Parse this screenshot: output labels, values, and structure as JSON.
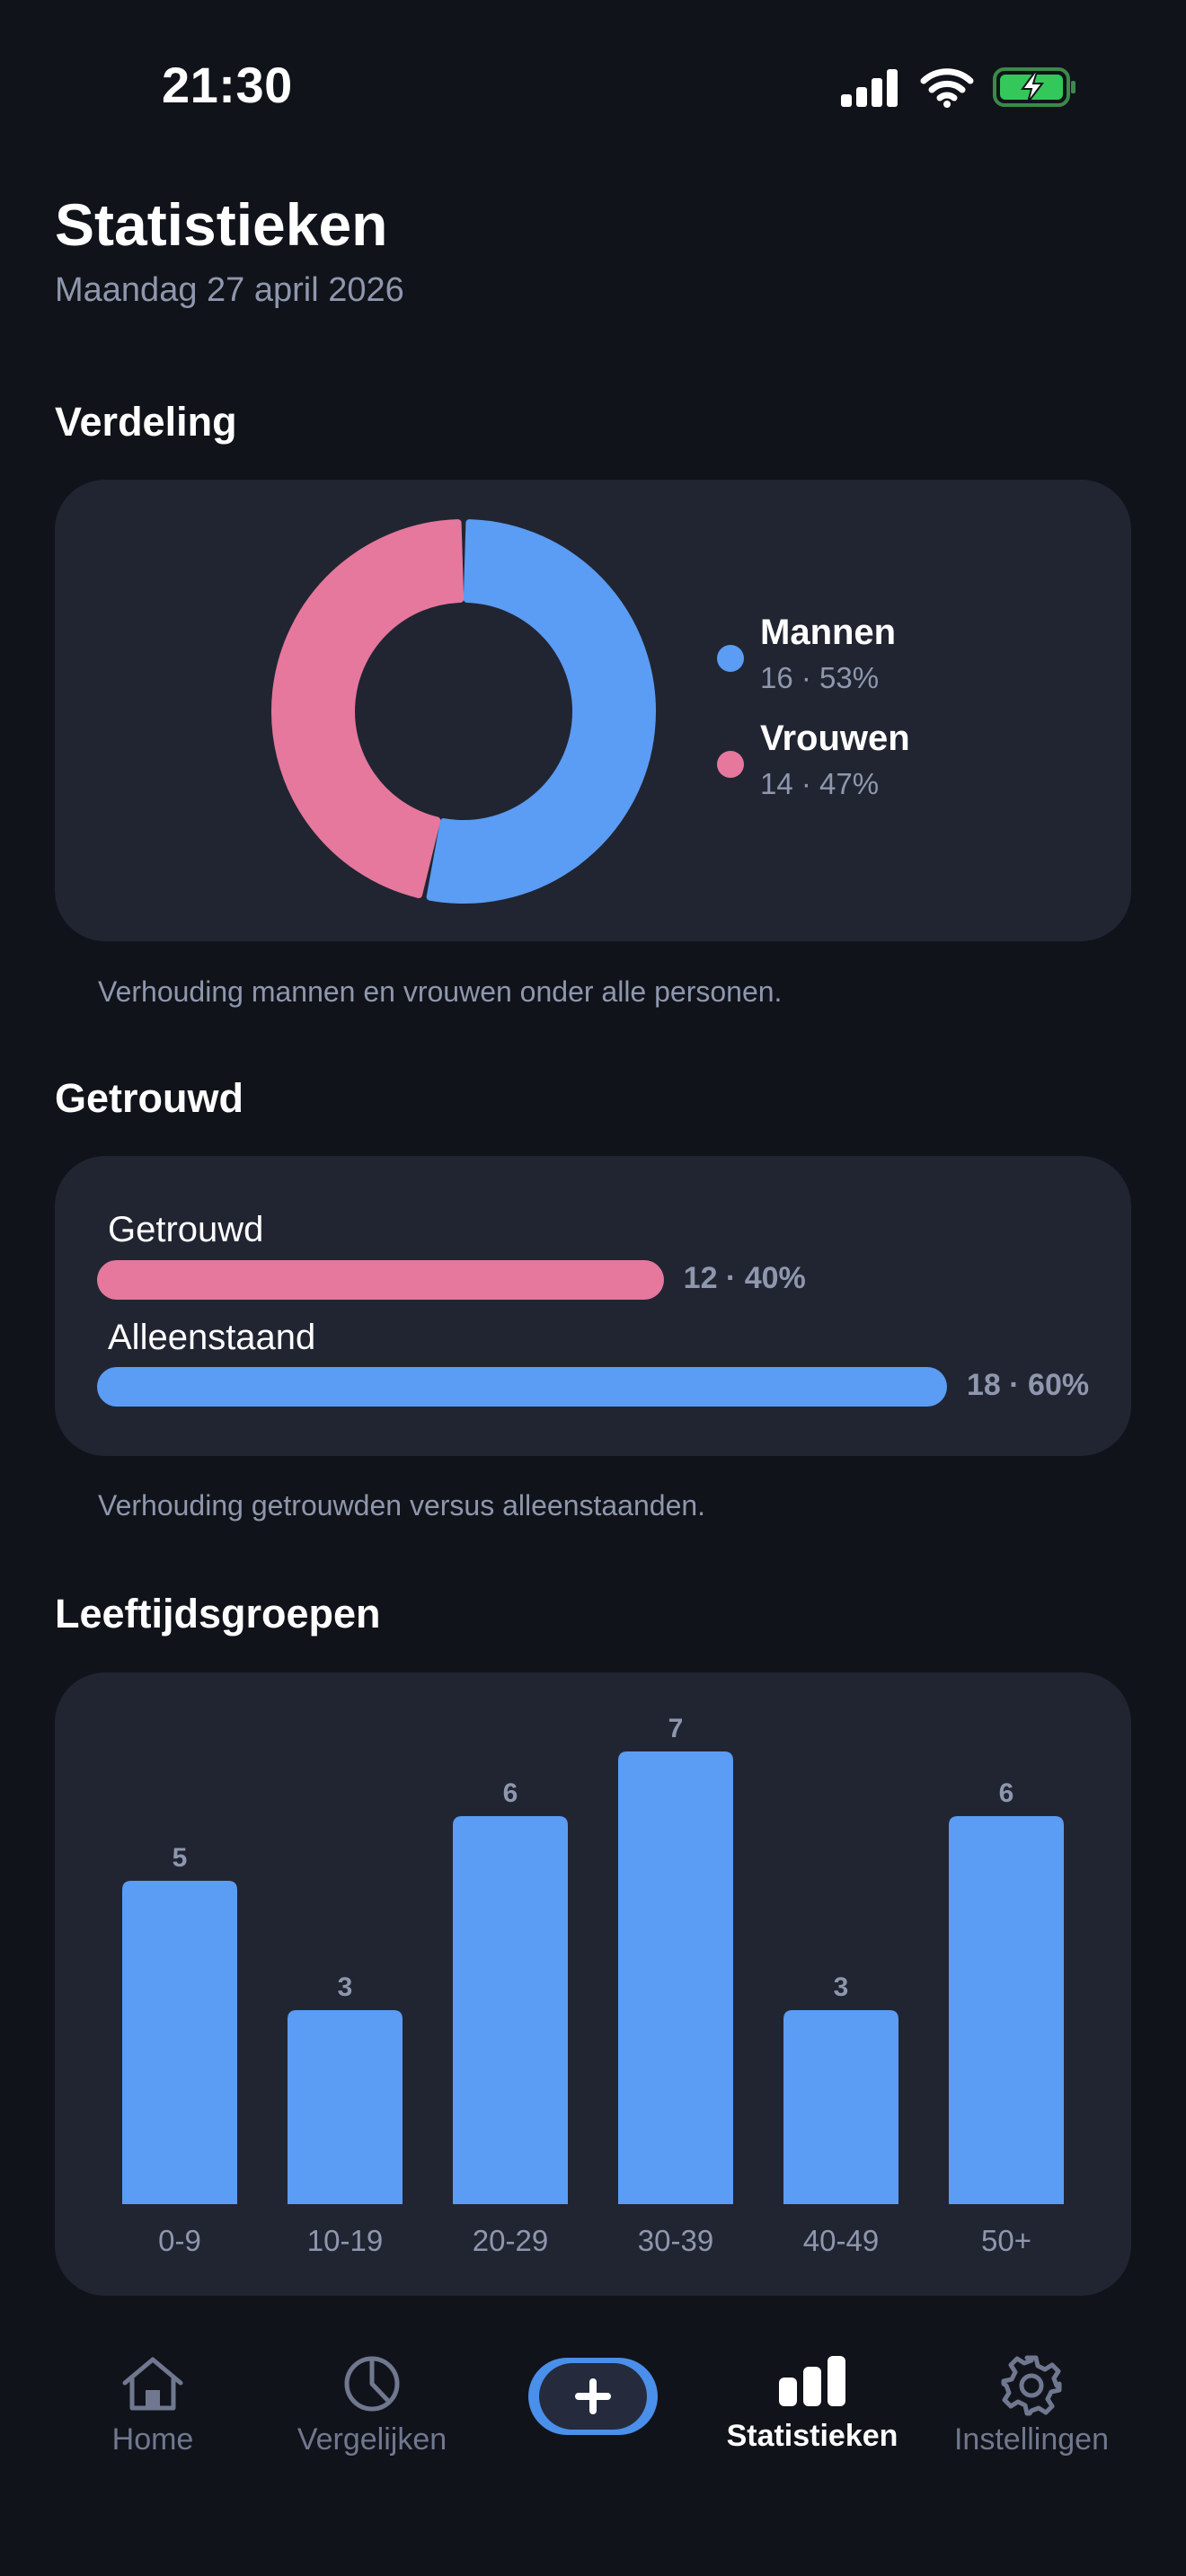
{
  "status_bar": {
    "time": "21:30",
    "signal_icon": "cellular-signal-icon",
    "wifi_icon": "wifi-icon",
    "battery_icon": "battery-charging-icon"
  },
  "header": {
    "title": "Statistieken",
    "date": "Maandag 27 april 2026"
  },
  "distribution": {
    "section_title": "Verdeling",
    "caption": "Verhouding mannen en vrouwen onder alle personen.",
    "legend": [
      {
        "name": "Mannen",
        "value_text": "16 · 53%",
        "color": "#5b9cf4"
      },
      {
        "name": "Vrouwen",
        "value_text": "14 · 47%",
        "color": "#e5789c"
      }
    ]
  },
  "married": {
    "section_title": "Getrouwd",
    "caption": "Verhouding getrouwden versus alleenstaanden.",
    "rows": [
      {
        "label": "Getrouwd",
        "value_text": "12 · 40%",
        "color": "#e5789c"
      },
      {
        "label": "Alleenstaand",
        "value_text": "18 · 60%",
        "color": "#5b9cf4"
      }
    ]
  },
  "age_groups": {
    "section_title": "Leeftijdsgroepen"
  },
  "chart_data": [
    {
      "type": "pie",
      "variant": "donut",
      "categories": [
        "Mannen",
        "Vrouwen"
      ],
      "values": [
        16,
        14
      ],
      "percentages": [
        53,
        47
      ],
      "colors": [
        "#5b9cf4",
        "#e5789c"
      ],
      "legend": "right"
    },
    {
      "type": "bar",
      "orientation": "horizontal",
      "categories": [
        "Getrouwd",
        "Alleenstaand"
      ],
      "values": [
        12,
        18
      ],
      "percentages": [
        40,
        60
      ],
      "colors": [
        "#e5789c",
        "#5b9cf4"
      ]
    },
    {
      "type": "bar",
      "categories": [
        "0-9",
        "10-19",
        "20-29",
        "30-39",
        "40-49",
        "50+"
      ],
      "values": [
        5,
        3,
        6,
        7,
        3,
        6
      ],
      "color": "#5b9cf4",
      "ylim": [
        0,
        7
      ],
      "grid": false
    }
  ],
  "tab_bar": {
    "tabs": [
      {
        "label": "Home",
        "icon": "home-icon",
        "active": false
      },
      {
        "label": "Vergelijken",
        "icon": "pie-chart-icon",
        "active": false
      },
      {
        "label": "Statistieken",
        "icon": "bar-chart-icon",
        "active": true
      },
      {
        "label": "Instellingen",
        "icon": "gear-icon",
        "active": false
      }
    ],
    "add_icon": "plus-icon"
  },
  "colors": {
    "background": "#11131a",
    "card": "#212532",
    "secondary_text": "#8e97ad",
    "blue": "#5b9cf4",
    "pink": "#e5789c",
    "battery_green": "#34c759"
  }
}
